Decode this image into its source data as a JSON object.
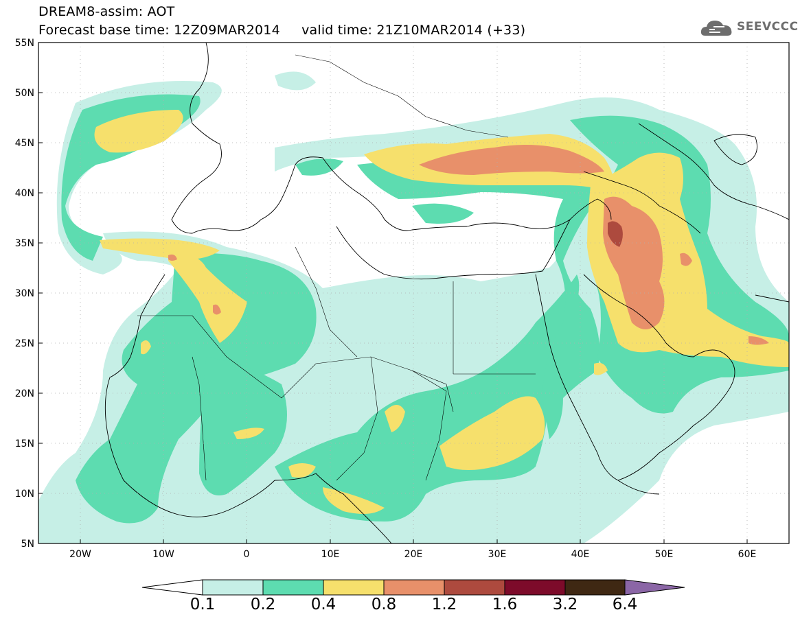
{
  "header": {
    "title": "DREAM8-assim: AOT",
    "base_time": "Forecast base time: 12Z09MAR2014",
    "valid_time": "valid time: 21Z10MAR2014 (+33)",
    "logo_text": "SEEVCCC"
  },
  "map": {
    "lon_range": [
      -25,
      65
    ],
    "lat_range": [
      5,
      55
    ],
    "lat_ticks": [
      "55N",
      "50N",
      "45N",
      "40N",
      "35N",
      "30N",
      "25N",
      "20N",
      "15N",
      "10N",
      "5N"
    ],
    "lon_ticks": [
      "20W",
      "10W",
      "0",
      "10E",
      "20E",
      "30E",
      "40E",
      "50E",
      "60E"
    ],
    "grid": true
  },
  "colorbar": {
    "labels": [
      "0.1",
      "0.2",
      "0.4",
      "0.8",
      "1.2",
      "1.6",
      "3.2",
      "6.4"
    ],
    "colors": [
      "#ffffff",
      "#c6efe6",
      "#5ddcb0",
      "#f6e06c",
      "#e8906a",
      "#ad4a3e",
      "#7d0b2a",
      "#3f2813",
      "#8b66a6"
    ]
  }
}
